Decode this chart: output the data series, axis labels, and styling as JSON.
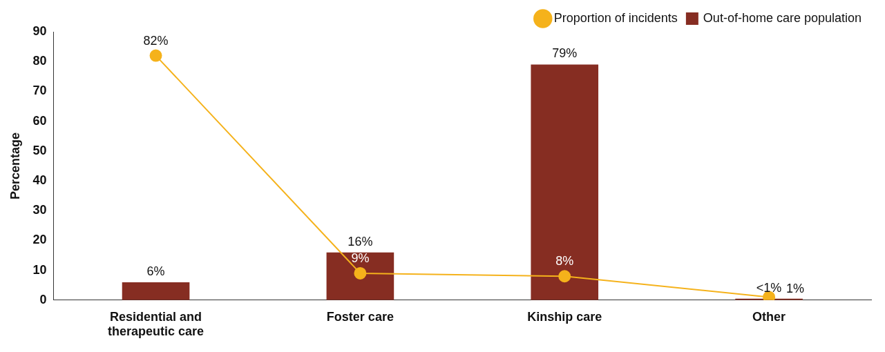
{
  "chart_data": {
    "type": "bar",
    "ylabel": "Percentage",
    "categories": [
      "Residential and therapeutic care",
      "Foster care",
      "Kinship care",
      "Other"
    ],
    "series": [
      {
        "name": "Proportion of incidents",
        "type": "line",
        "color": "#f5b21b",
        "values": [
          82,
          9,
          8,
          1
        ],
        "value_labels": [
          "82%",
          "9%",
          "8%",
          "1%"
        ]
      },
      {
        "name": "Out-of-home care population",
        "color": "#862d22",
        "values": [
          6,
          16,
          79,
          0.5
        ],
        "value_labels": [
          "6%",
          "16%",
          "79%",
          "<1%"
        ]
      }
    ],
    "ylim": [
      0,
      90
    ],
    "yticks": [
      0,
      10,
      20,
      30,
      40,
      50,
      60,
      70,
      80,
      90
    ],
    "grid": false,
    "legend": "top right",
    "marker": "circle",
    "line_style": "solid"
  }
}
